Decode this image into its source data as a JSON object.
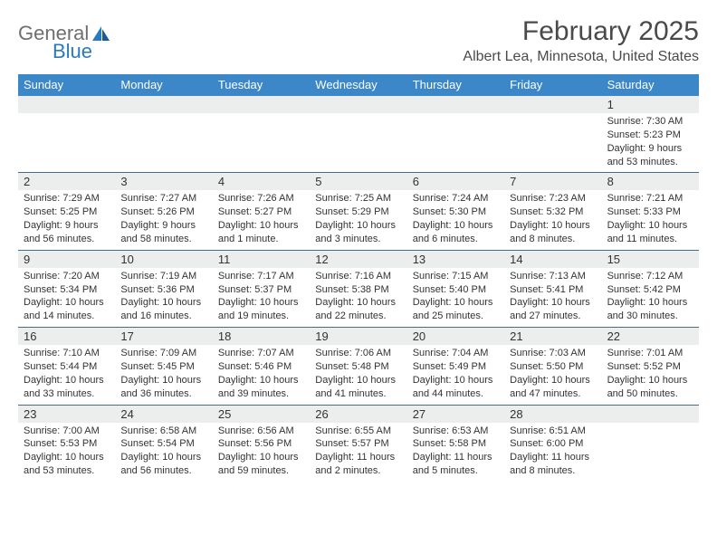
{
  "logo": {
    "part1": "General",
    "part2": "Blue"
  },
  "title": "February 2025",
  "location": "Albert Lea, Minnesota, United States",
  "colors": {
    "header_bg": "#3b87c8",
    "header_text": "#ffffff",
    "band_bg": "#eceded",
    "row_border": "#4a6a8a",
    "body_text": "#333333",
    "logo_gray": "#6f6f6f",
    "logo_blue": "#2a7ac0",
    "title_color": "#4a4a4a",
    "page_bg": "#ffffff"
  },
  "layout": {
    "columns": 7,
    "first_day_column_index": 6,
    "day_fontsize": 13,
    "detail_fontsize": 11,
    "title_fontsize": 30,
    "location_fontsize": 16
  },
  "weekdays": [
    "Sunday",
    "Monday",
    "Tuesday",
    "Wednesday",
    "Thursday",
    "Friday",
    "Saturday"
  ],
  "days": [
    {
      "n": 1,
      "sunrise": "7:30 AM",
      "sunset": "5:23 PM",
      "daylight": "9 hours and 53 minutes."
    },
    {
      "n": 2,
      "sunrise": "7:29 AM",
      "sunset": "5:25 PM",
      "daylight": "9 hours and 56 minutes."
    },
    {
      "n": 3,
      "sunrise": "7:27 AM",
      "sunset": "5:26 PM",
      "daylight": "9 hours and 58 minutes."
    },
    {
      "n": 4,
      "sunrise": "7:26 AM",
      "sunset": "5:27 PM",
      "daylight": "10 hours and 1 minute."
    },
    {
      "n": 5,
      "sunrise": "7:25 AM",
      "sunset": "5:29 PM",
      "daylight": "10 hours and 3 minutes."
    },
    {
      "n": 6,
      "sunrise": "7:24 AM",
      "sunset": "5:30 PM",
      "daylight": "10 hours and 6 minutes."
    },
    {
      "n": 7,
      "sunrise": "7:23 AM",
      "sunset": "5:32 PM",
      "daylight": "10 hours and 8 minutes."
    },
    {
      "n": 8,
      "sunrise": "7:21 AM",
      "sunset": "5:33 PM",
      "daylight": "10 hours and 11 minutes."
    },
    {
      "n": 9,
      "sunrise": "7:20 AM",
      "sunset": "5:34 PM",
      "daylight": "10 hours and 14 minutes."
    },
    {
      "n": 10,
      "sunrise": "7:19 AM",
      "sunset": "5:36 PM",
      "daylight": "10 hours and 16 minutes."
    },
    {
      "n": 11,
      "sunrise": "7:17 AM",
      "sunset": "5:37 PM",
      "daylight": "10 hours and 19 minutes."
    },
    {
      "n": 12,
      "sunrise": "7:16 AM",
      "sunset": "5:38 PM",
      "daylight": "10 hours and 22 minutes."
    },
    {
      "n": 13,
      "sunrise": "7:15 AM",
      "sunset": "5:40 PM",
      "daylight": "10 hours and 25 minutes."
    },
    {
      "n": 14,
      "sunrise": "7:13 AM",
      "sunset": "5:41 PM",
      "daylight": "10 hours and 27 minutes."
    },
    {
      "n": 15,
      "sunrise": "7:12 AM",
      "sunset": "5:42 PM",
      "daylight": "10 hours and 30 minutes."
    },
    {
      "n": 16,
      "sunrise": "7:10 AM",
      "sunset": "5:44 PM",
      "daylight": "10 hours and 33 minutes."
    },
    {
      "n": 17,
      "sunrise": "7:09 AM",
      "sunset": "5:45 PM",
      "daylight": "10 hours and 36 minutes."
    },
    {
      "n": 18,
      "sunrise": "7:07 AM",
      "sunset": "5:46 PM",
      "daylight": "10 hours and 39 minutes."
    },
    {
      "n": 19,
      "sunrise": "7:06 AM",
      "sunset": "5:48 PM",
      "daylight": "10 hours and 41 minutes."
    },
    {
      "n": 20,
      "sunrise": "7:04 AM",
      "sunset": "5:49 PM",
      "daylight": "10 hours and 44 minutes."
    },
    {
      "n": 21,
      "sunrise": "7:03 AM",
      "sunset": "5:50 PM",
      "daylight": "10 hours and 47 minutes."
    },
    {
      "n": 22,
      "sunrise": "7:01 AM",
      "sunset": "5:52 PM",
      "daylight": "10 hours and 50 minutes."
    },
    {
      "n": 23,
      "sunrise": "7:00 AM",
      "sunset": "5:53 PM",
      "daylight": "10 hours and 53 minutes."
    },
    {
      "n": 24,
      "sunrise": "6:58 AM",
      "sunset": "5:54 PM",
      "daylight": "10 hours and 56 minutes."
    },
    {
      "n": 25,
      "sunrise": "6:56 AM",
      "sunset": "5:56 PM",
      "daylight": "10 hours and 59 minutes."
    },
    {
      "n": 26,
      "sunrise": "6:55 AM",
      "sunset": "5:57 PM",
      "daylight": "11 hours and 2 minutes."
    },
    {
      "n": 27,
      "sunrise": "6:53 AM",
      "sunset": "5:58 PM",
      "daylight": "11 hours and 5 minutes."
    },
    {
      "n": 28,
      "sunrise": "6:51 AM",
      "sunset": "6:00 PM",
      "daylight": "11 hours and 8 minutes."
    }
  ]
}
